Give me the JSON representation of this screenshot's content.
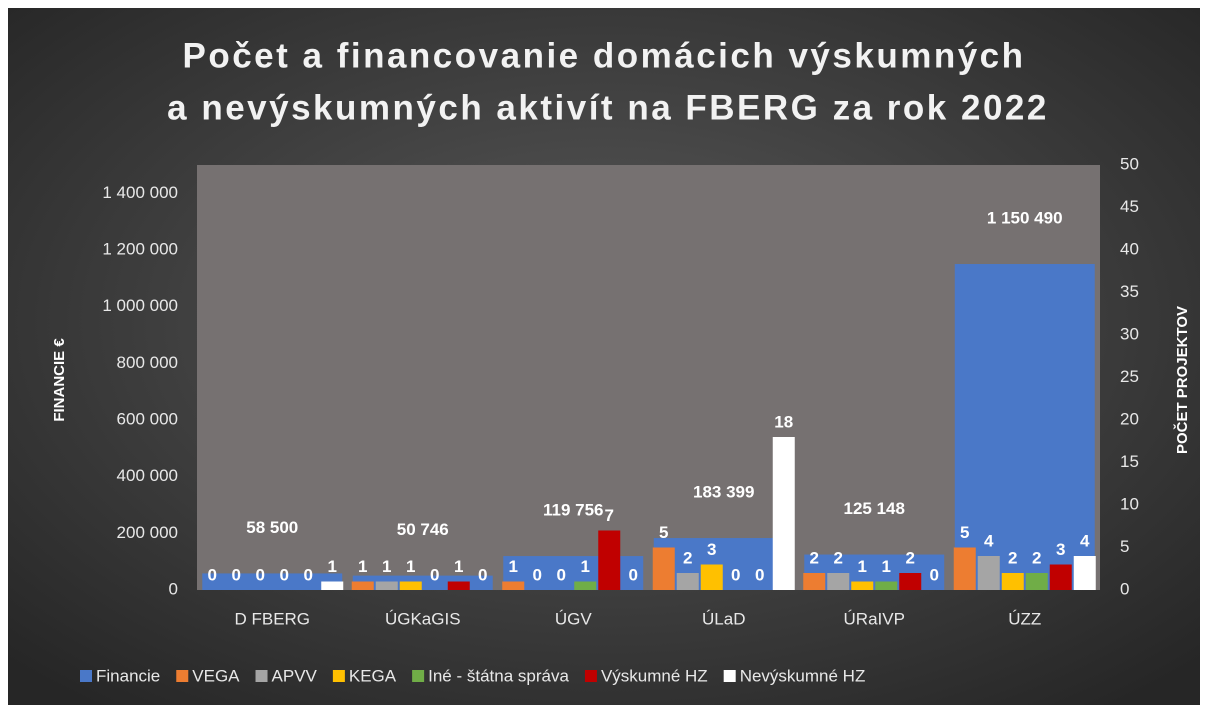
{
  "chart_data": {
    "type": "bar",
    "title": [
      "Počet a financovanie domácich výskumných",
      "a nevýskumných aktivít na FBERG za rok 2022"
    ],
    "y_label": "FINANCIE €",
    "y2_label": "POČET PROJEKTOV",
    "categories": [
      "D FBERG",
      "ÚGKaGIS",
      "ÚGV",
      "ÚLaD",
      "ÚRaIVP",
      "ÚZZ"
    ],
    "series": [
      {
        "name": "Financie",
        "color": "#4a78c8",
        "axis": "y",
        "values": [
          58500,
          50746,
          119756,
          183399,
          125148,
          1150490
        ],
        "value_labels": [
          "58 500",
          "50 746",
          "119 756",
          "183 399",
          "125 148",
          "1 150 490"
        ]
      },
      {
        "name": "VEGA",
        "color": "#ed7d31",
        "axis": "y2",
        "values": [
          0,
          1,
          1,
          5,
          2,
          5
        ]
      },
      {
        "name": "APVV",
        "color": "#a5a5a5",
        "axis": "y2",
        "values": [
          0,
          1,
          0,
          2,
          2,
          4
        ]
      },
      {
        "name": "KEGA",
        "color": "#ffc000",
        "axis": "y2",
        "values": [
          0,
          1,
          0,
          3,
          1,
          2
        ]
      },
      {
        "name": "Iné - štátna správa",
        "color": "#70ad47",
        "axis": "y2",
        "values": [
          0,
          0,
          1,
          0,
          1,
          2
        ]
      },
      {
        "name": "Výskumné HZ",
        "color": "#c00000",
        "axis": "y2",
        "values": [
          0,
          1,
          7,
          0,
          2,
          3
        ]
      },
      {
        "name": "Nevýskumné HZ",
        "color": "#ffffff",
        "axis": "y2",
        "values": [
          1,
          0,
          0,
          18,
          0,
          4
        ]
      }
    ],
    "ylim": [
      0,
      1500000
    ],
    "yticks": [
      0,
      {
        "value": 200000,
        "label": "200 000"
      },
      {
        "value": 400000,
        "label": "400 000"
      },
      {
        "value": 600000,
        "label": "600 000"
      },
      {
        "value": 800000,
        "label": "800 000"
      },
      {
        "value": 1000000,
        "label": "1 000 000"
      },
      {
        "value": 1200000,
        "label": "1 200 000"
      },
      {
        "value": 1400000,
        "label": "1 400 000"
      }
    ],
    "y2lim": [
      0,
      50
    ],
    "y2ticks": [
      0,
      5,
      10,
      15,
      20,
      25,
      30,
      35,
      40,
      45,
      50
    ],
    "legend": "bottom"
  }
}
